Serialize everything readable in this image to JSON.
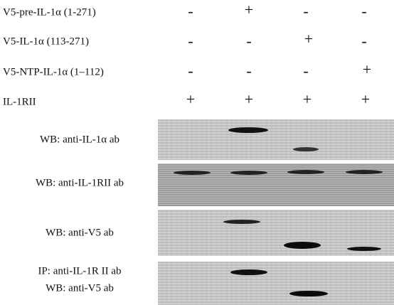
{
  "conditions": [
    {
      "label": "V5-pre-IL-1α (1-271)",
      "signs": [
        "-",
        "+",
        "-",
        "-"
      ]
    },
    {
      "label": "V5-IL-1α (113-271)",
      "signs": [
        "-",
        "-",
        "+",
        "-"
      ]
    },
    {
      "label": "V5-NTP-IL-1α (1–112)",
      "signs": [
        "-",
        "-",
        "-",
        "+"
      ]
    },
    {
      "label": "IL-1RII",
      "signs": [
        "+",
        "+",
        "+",
        "+"
      ]
    }
  ],
  "panels": [
    {
      "lines": [
        "WB: anti-IL-1α ab"
      ]
    },
    {
      "lines": [
        "WB: anti-IL-1RII ab"
      ]
    },
    {
      "lines": [
        "WB: anti-V5 ab"
      ]
    },
    {
      "lines": [
        "IP: anti-IL-1R II ab",
        "WB: anti-V5 ab"
      ]
    }
  ]
}
